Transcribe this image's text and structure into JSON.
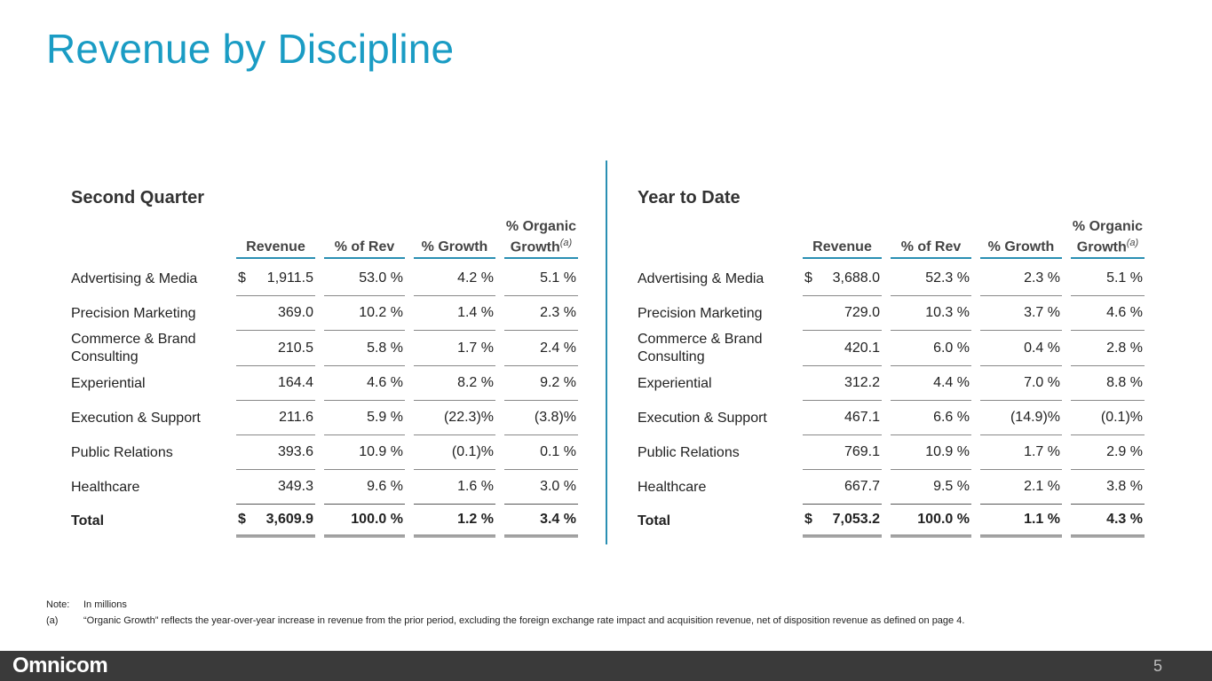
{
  "page_title": "Revenue by Discipline",
  "headers": {
    "revenue": "Revenue",
    "pct_rev": "% of Rev",
    "pct_growth": "% Growth",
    "organic_line1": "% Organic",
    "organic_line2": "Growth",
    "organic_sup": "(a)"
  },
  "sections": [
    {
      "title": "Second Quarter",
      "rows": [
        {
          "label": "Advertising & Media",
          "dollar": "$",
          "revenue": "1,911.5",
          "pct_rev": "53.0 %",
          "pct_growth": "4.2 %",
          "organic": "5.1 %"
        },
        {
          "label": "Precision Marketing",
          "dollar": "",
          "revenue": "369.0",
          "pct_rev": "10.2 %",
          "pct_growth": "1.4 %",
          "organic": "2.3 %"
        },
        {
          "label": "Commerce & Brand Consulting",
          "dollar": "",
          "revenue": "210.5",
          "pct_rev": "5.8 %",
          "pct_growth": "1.7 %",
          "organic": "2.4 %"
        },
        {
          "label": "Experiential",
          "dollar": "",
          "revenue": "164.4",
          "pct_rev": "4.6 %",
          "pct_growth": "8.2 %",
          "organic": "9.2 %"
        },
        {
          "label": "Execution & Support",
          "dollar": "",
          "revenue": "211.6",
          "pct_rev": "5.9 %",
          "pct_growth": "(22.3)%",
          "organic": "(3.8)%"
        },
        {
          "label": "Public Relations",
          "dollar": "",
          "revenue": "393.6",
          "pct_rev": "10.9 %",
          "pct_growth": "(0.1)%",
          "organic": "0.1 %"
        },
        {
          "label": "Healthcare",
          "dollar": "",
          "revenue": "349.3",
          "pct_rev": "9.6 %",
          "pct_growth": "1.6 %",
          "organic": "3.0 %"
        }
      ],
      "total": {
        "label": "Total",
        "dollar": "$",
        "revenue": "3,609.9",
        "pct_rev": "100.0 %",
        "pct_growth": "1.2 %",
        "organic": "3.4 %"
      }
    },
    {
      "title": "Year to Date",
      "rows": [
        {
          "label": "Advertising & Media",
          "dollar": "$",
          "revenue": "3,688.0",
          "pct_rev": "52.3 %",
          "pct_growth": "2.3 %",
          "organic": "5.1 %"
        },
        {
          "label": "Precision Marketing",
          "dollar": "",
          "revenue": "729.0",
          "pct_rev": "10.3 %",
          "pct_growth": "3.7 %",
          "organic": "4.6 %"
        },
        {
          "label": "Commerce & Brand Consulting",
          "dollar": "",
          "revenue": "420.1",
          "pct_rev": "6.0 %",
          "pct_growth": "0.4 %",
          "organic": "2.8 %"
        },
        {
          "label": "Experiential",
          "dollar": "",
          "revenue": "312.2",
          "pct_rev": "4.4 %",
          "pct_growth": "7.0 %",
          "organic": "8.8 %"
        },
        {
          "label": "Execution & Support",
          "dollar": "",
          "revenue": "467.1",
          "pct_rev": "6.6 %",
          "pct_growth": "(14.9)%",
          "organic": "(0.1)%"
        },
        {
          "label": "Public Relations",
          "dollar": "",
          "revenue": "769.1",
          "pct_rev": "10.9 %",
          "pct_growth": "1.7 %",
          "organic": "2.9 %"
        },
        {
          "label": "Healthcare",
          "dollar": "",
          "revenue": "667.7",
          "pct_rev": "9.5 %",
          "pct_growth": "2.1 %",
          "organic": "3.8 %"
        }
      ],
      "total": {
        "label": "Total",
        "dollar": "$",
        "revenue": "7,053.2",
        "pct_rev": "100.0 %",
        "pct_growth": "1.1 %",
        "organic": "4.3 %"
      }
    }
  ],
  "notes": [
    {
      "key": "Note:",
      "text": "In millions"
    },
    {
      "key": "(a)",
      "text": "“Organic Growth” reflects the year-over-year increase in revenue from the prior period, excluding the foreign exchange rate impact and acquisition revenue, net of disposition revenue as defined on page 4."
    }
  ],
  "footer": {
    "logo": "Omnicom",
    "page_number": "5"
  },
  "colors": {
    "accent": "#1a9cc4",
    "rule": "#2a8fb3",
    "footer_bg": "#3a3a3a"
  }
}
